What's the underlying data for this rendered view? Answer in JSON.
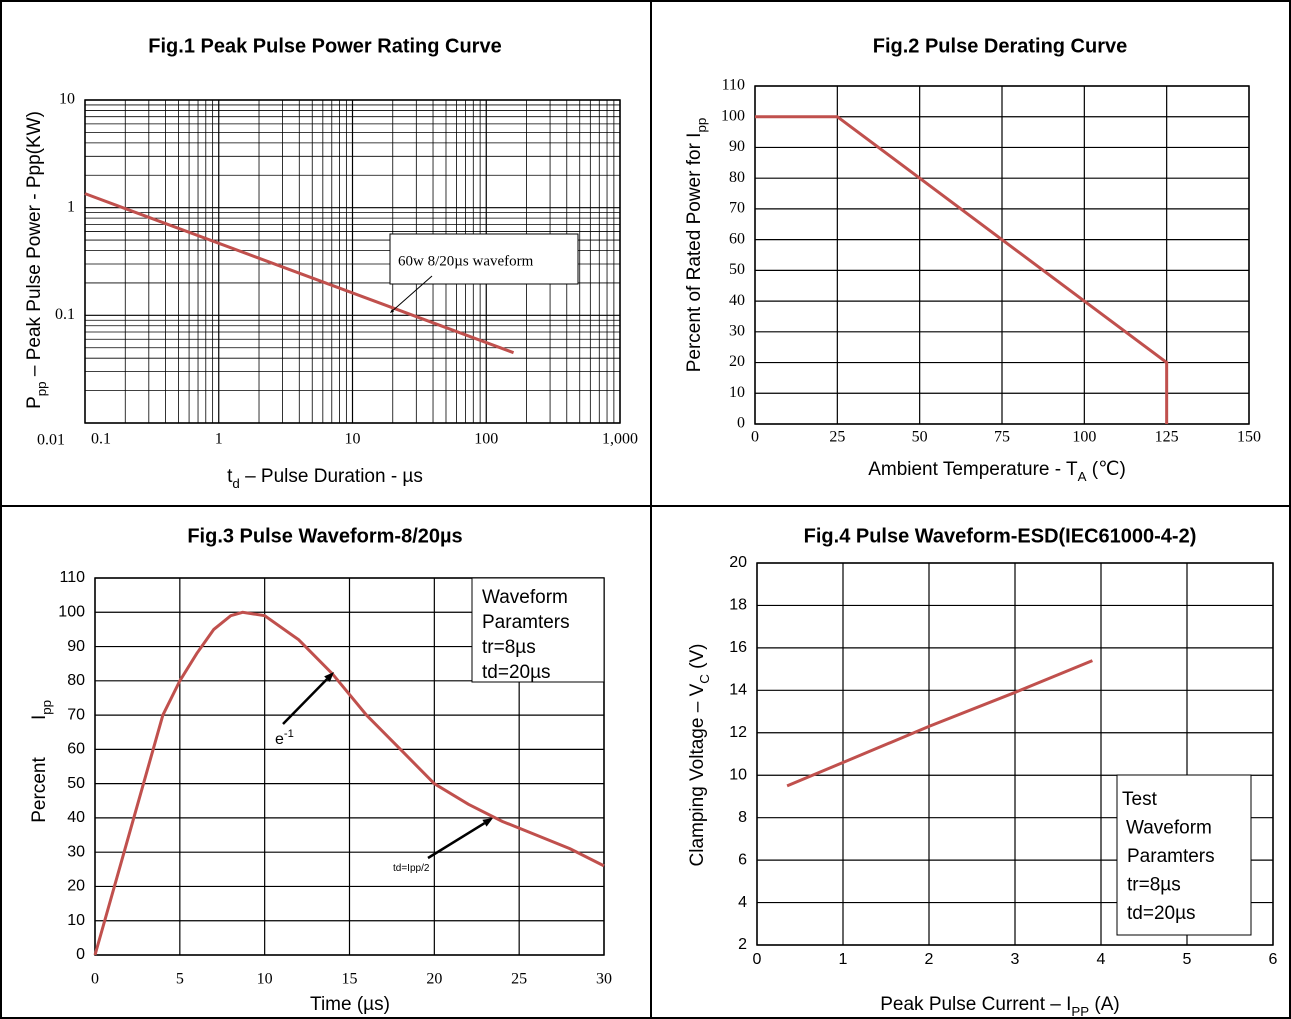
{
  "chart_data": [
    {
      "type": "line",
      "title": "Fig.1 Peak Pulse Power Rating Curve",
      "xlabel": [
        "t",
        "d",
        " –  Pulse Duration  - µs"
      ],
      "ylabel": [
        "P",
        "pp",
        "  –  Peak Pulse Power - Ppp(KW)"
      ],
      "xlog": true,
      "ylog": true,
      "grid": true,
      "xlim": [
        0.1,
        1000
      ],
      "ylim": [
        0.01,
        10
      ],
      "xticks": [
        0.1,
        1,
        10,
        100,
        {
          "value": 1000,
          "label": "1,000"
        }
      ],
      "yticks": [
        0.01,
        0.1,
        1,
        10
      ],
      "xminor": [
        0.2,
        0.3,
        0.4,
        0.5,
        0.6,
        0.7,
        0.8,
        0.9,
        2,
        3,
        4,
        5,
        6,
        7,
        8,
        9,
        20,
        30,
        40,
        50,
        60,
        70,
        80,
        90,
        200,
        300,
        400,
        500,
        600,
        700,
        800,
        900
      ],
      "yminor": [
        0.02,
        0.03,
        0.04,
        0.05,
        0.06,
        0.07,
        0.08,
        0.09,
        0.2,
        0.3,
        0.4,
        0.5,
        0.6,
        0.7,
        0.8,
        0.9,
        2,
        3,
        4,
        5,
        6,
        7,
        8,
        9
      ],
      "annotation": "60w 8/20µs waveform",
      "series": [
        {
          "color": "#c0504d",
          "x": [
            0.1,
            160
          ],
          "values": [
            1.35,
            0.045
          ]
        }
      ]
    },
    {
      "type": "line",
      "title": "Fig.2 Pulse Derating Curve",
      "xlabel": [
        "Ambient Temperature - T",
        "A",
        " (℃)"
      ],
      "ylabel": [
        "Percent of Rated Power for I",
        "pp"
      ],
      "grid": true,
      "xlim": [
        0,
        150
      ],
      "ylim": [
        0,
        110
      ],
      "xticks": [
        0,
        25,
        50,
        75,
        100,
        125,
        150
      ],
      "yticks": [
        0,
        10,
        20,
        30,
        40,
        50,
        60,
        70,
        80,
        90,
        100,
        110
      ],
      "series": [
        {
          "color": "#c0504d",
          "x": [
            0,
            25,
            125,
            125
          ],
          "values": [
            100,
            100,
            20,
            0
          ]
        }
      ]
    },
    {
      "type": "line",
      "title": "Fig.3 Pulse Waveform-8/20µs",
      "xlabel": [
        "Time (µs)"
      ],
      "ylabel": [
        "I",
        "pp"
      ],
      "ylabel2": "Percent",
      "grid": true,
      "xlim": [
        0,
        30
      ],
      "ylim": [
        0,
        110
      ],
      "xticks": [
        0,
        5,
        10,
        15,
        20,
        25,
        30
      ],
      "yticks": [
        0,
        10,
        20,
        30,
        40,
        50,
        60,
        70,
        80,
        90,
        100,
        110
      ],
      "legend_box": [
        "Waveform",
        "Paramters",
        "tr=8µs",
        "td=20µs"
      ],
      "annotations": [
        [
          "e",
          "-1"
        ],
        [
          "td=Ipp/2"
        ]
      ],
      "series": [
        {
          "color": "#c0504d",
          "x": [
            0,
            2,
            4,
            5,
            6,
            7,
            8,
            8.7,
            10,
            12,
            14,
            16,
            18,
            20,
            22,
            24,
            26,
            28,
            30
          ],
          "values": [
            0,
            35,
            70,
            80,
            88,
            95,
            99,
            100,
            99,
            92,
            82,
            70,
            60,
            50,
            44,
            39,
            35,
            31,
            26
          ]
        }
      ]
    },
    {
      "type": "line",
      "title": "Fig.4 Pulse Waveform-ESD(IEC61000-4-2)",
      "xlabel": [
        "Peak Pulse Current – I",
        "PP",
        " (A)"
      ],
      "ylabel": [
        "Clamping Voltage – V",
        "C",
        " (V)"
      ],
      "grid": true,
      "xlim": [
        0,
        6
      ],
      "ylim": [
        2,
        20
      ],
      "xticks": [
        0,
        1,
        2,
        3,
        4,
        5,
        6
      ],
      "yticks": [
        2,
        4,
        6,
        8,
        10,
        12,
        14,
        16,
        18,
        20
      ],
      "legend_box": [
        "Test",
        "Waveform",
        "Paramters",
        "tr=8µs",
        "td=20µs"
      ],
      "series": [
        {
          "color": "#c0504d",
          "x": [
            0.35,
            1,
            2,
            3,
            3.9
          ],
          "values": [
            9.5,
            10.6,
            12.3,
            13.9,
            15.4
          ]
        }
      ]
    }
  ]
}
